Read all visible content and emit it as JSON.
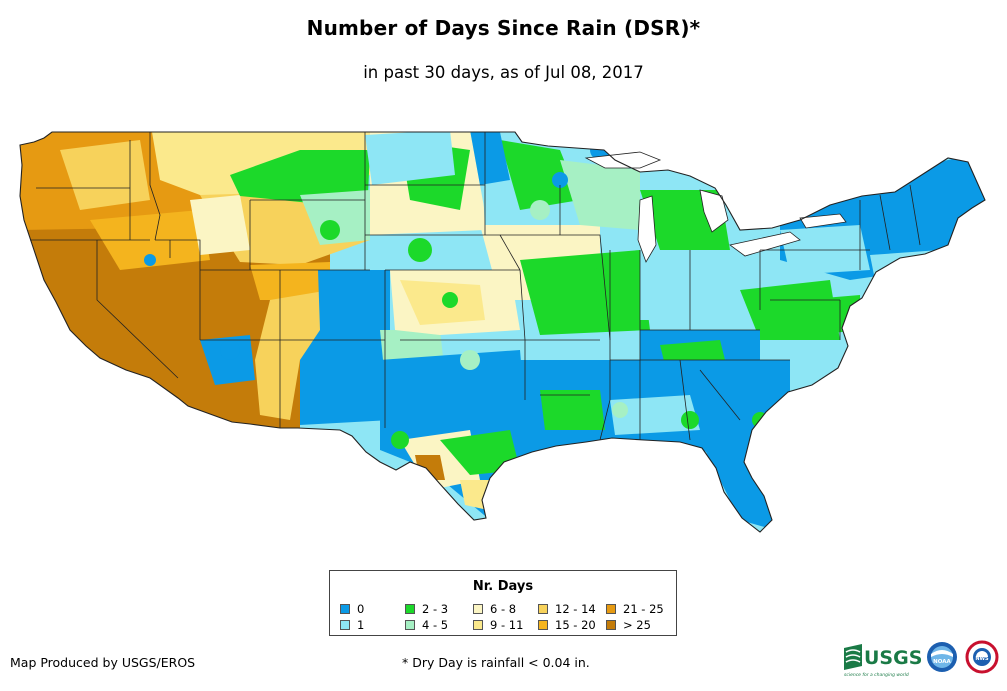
{
  "title": "Number of Days Since Rain (DSR)*",
  "subtitle": "in past 30 days, as of Jul 08, 2017",
  "legend": {
    "title": "Nr. Days",
    "items": [
      {
        "label": "0",
        "color": "#0b9ae6"
      },
      {
        "label": "1",
        "color": "#8ee6f5"
      },
      {
        "label": "2 - 3",
        "color": "#1cd92a"
      },
      {
        "label": "4 - 5",
        "color": "#a6f0c4"
      },
      {
        "label": "6 - 8",
        "color": "#fbf5c4"
      },
      {
        "label": "9 - 11",
        "color": "#fbe98c"
      },
      {
        "label": "12 - 14",
        "color": "#f7d25b"
      },
      {
        "label": "15 - 20",
        "color": "#f4b41e"
      },
      {
        "label": "21 - 25",
        "color": "#e69a12"
      },
      {
        "label": "> 25",
        "color": "#c47c0a"
      }
    ]
  },
  "credit": "Map Produced by USGS/EROS",
  "footnote": "* Dry Day is rainfall < 0.04 in.",
  "logos": {
    "usgs": {
      "text": "USGS",
      "tagline": "science for a changing world"
    },
    "noaa": {
      "text": "NOAA"
    },
    "nws": {
      "text": "NWS"
    }
  }
}
